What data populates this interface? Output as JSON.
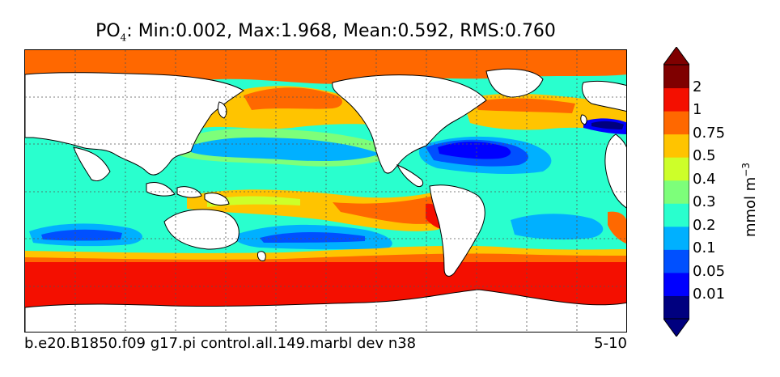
{
  "title": {
    "variable": "PO",
    "subscript": "4",
    "stats": ": Min:0.002, Max:1.968, Mean:0.592, RMS:0.760"
  },
  "footer": {
    "case_name": "b.e20.B1850.f09 g17.pi control.all.149.marbl dev n38",
    "depth_range": "5-10"
  },
  "colorbar": {
    "unit_base": "mmol m",
    "unit_exp": "−3",
    "levels": [
      "0.01",
      "0.05",
      "0.1",
      "0.2",
      "0.3",
      "0.4",
      "0.5",
      "0.75",
      "1",
      "2"
    ],
    "colors": [
      "#00007f",
      "#0000ff",
      "#0050ff",
      "#00b0ff",
      "#29ffce",
      "#7dff7a",
      "#cdff29",
      "#ffc400",
      "#ff6800",
      "#f40f00",
      "#7f0000"
    ]
  },
  "legend_colors": {
    "land": "#ffffff",
    "coast": "#000000",
    "grid": "#555555"
  }
}
